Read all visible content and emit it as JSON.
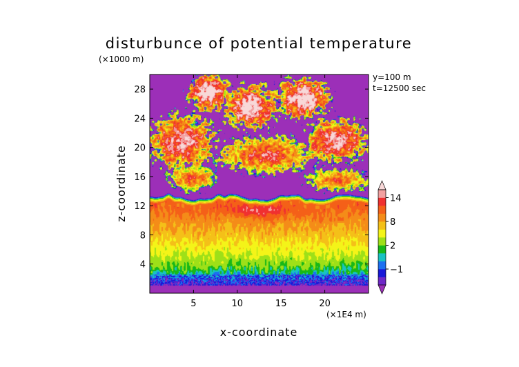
{
  "chart_data": {
    "type": "heatmap",
    "title": "disturbunce of potential temperature",
    "xlabel": "x-coordinate",
    "ylabel": "z-coordinate",
    "x_unit": "(×1E4 m)",
    "y_unit": "(×1000 m)",
    "info": [
      "y=100 m",
      "t=12500 sec"
    ],
    "xlim": [
      0,
      25
    ],
    "ylim": [
      0,
      30
    ],
    "x_ticks": [
      5,
      10,
      15,
      20
    ],
    "y_ticks": [
      4,
      8,
      12,
      16,
      20,
      24,
      28
    ],
    "x_tick_labels": [
      "5",
      "10",
      "15",
      "20"
    ],
    "y_tick_labels": [
      "4",
      "8",
      "12",
      "16",
      "20",
      "24",
      "28"
    ],
    "colorbar": {
      "tick_values": [
        -1,
        2,
        8,
        14
      ],
      "tick_labels": [
        "−1",
        "2",
        "8",
        "14"
      ],
      "levels": [
        {
          "min": -99,
          "max": -3,
          "color": "#9c2fb8"
        },
        {
          "min": -3,
          "max": -2,
          "color": "#6f28c8"
        },
        {
          "min": -2,
          "max": -1,
          "color": "#1818d8"
        },
        {
          "min": -1,
          "max": 0,
          "color": "#1c70f0"
        },
        {
          "min": 0,
          "max": 1,
          "color": "#18c2c2"
        },
        {
          "min": 1,
          "max": 2,
          "color": "#18b818"
        },
        {
          "min": 2,
          "max": 4,
          "color": "#9ee018"
        },
        {
          "min": 4,
          "max": 6,
          "color": "#f4f418"
        },
        {
          "min": 6,
          "max": 8,
          "color": "#f4c018"
        },
        {
          "min": 8,
          "max": 10,
          "color": "#f48c18"
        },
        {
          "min": 10,
          "max": 12,
          "color": "#f46018"
        },
        {
          "min": 12,
          "max": 14,
          "color": "#f03030"
        },
        {
          "min": 14,
          "max": 16,
          "color": "#f2a0a0"
        },
        {
          "min": 16,
          "max": 99,
          "color": "#f8d8d8"
        }
      ]
    },
    "field": {
      "base": -4,
      "inversion_top_km": 12.3,
      "features": [
        {
          "kind": "lower_layer",
          "z_from": 1.5,
          "z_to": 12.3
        },
        {
          "kind": "plume",
          "x": [
            2.0,
            7.5
          ],
          "z": [
            14.0,
            17.5
          ],
          "peak": 10
        },
        {
          "kind": "plume",
          "x": [
            8.0,
            18.5
          ],
          "z": [
            16.5,
            21.5
          ],
          "peak": 12
        },
        {
          "kind": "plume",
          "x": [
            18.0,
            25.0
          ],
          "z": [
            14.0,
            17.0
          ],
          "peak": 10
        },
        {
          "kind": "plume",
          "x": [
            0.0,
            7.5
          ],
          "z": [
            17.0,
            24.5
          ],
          "peak": 15
        },
        {
          "kind": "plume",
          "x": [
            17.5,
            25.0
          ],
          "z": [
            18.0,
            24.0
          ],
          "peak": 15
        },
        {
          "kind": "plume",
          "x": [
            4.5,
            9.0
          ],
          "z": [
            25.0,
            30.0
          ],
          "peak": 18
        },
        {
          "kind": "plume",
          "x": [
            8.5,
            14.5
          ],
          "z": [
            22.5,
            28.5
          ],
          "peak": 18
        },
        {
          "kind": "plume",
          "x": [
            14.5,
            20.5
          ],
          "z": [
            24.0,
            29.5
          ],
          "peak": 18
        }
      ]
    }
  }
}
